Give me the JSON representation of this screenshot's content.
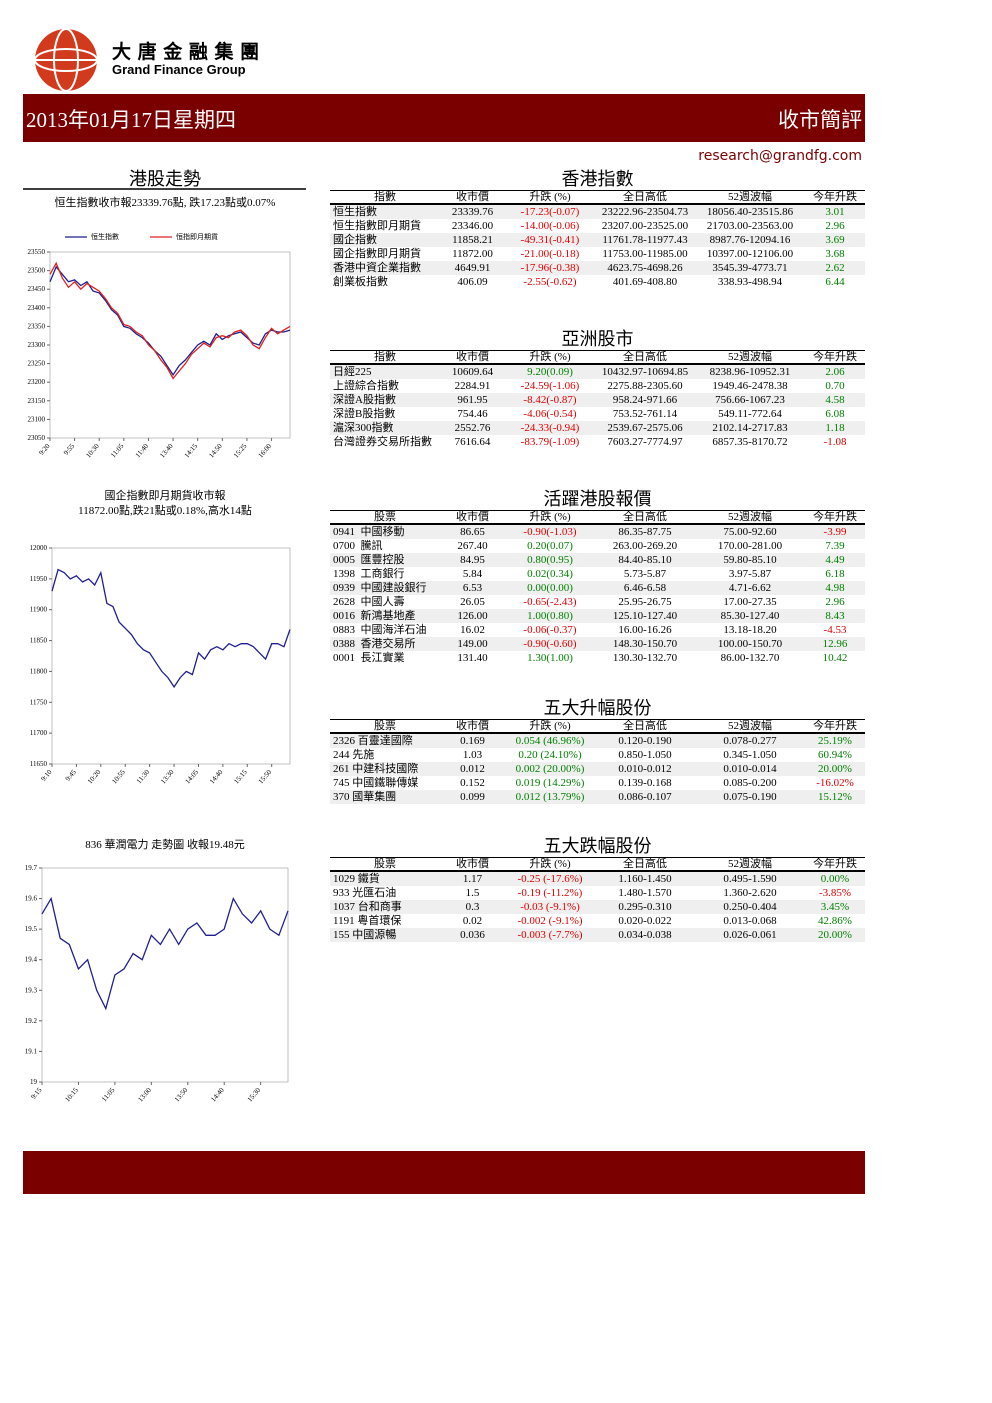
{
  "header": {
    "logo_cn": "大 唐 金 融 集 團",
    "logo_en": "Grand Finance Group",
    "date": "2013年01月17日星期四",
    "section": "收市簡評",
    "email": "research@grandfg.com"
  },
  "left_heading": "港股走勢",
  "chart_data": [
    {
      "type": "line",
      "title": "恒生指數收市報23339.76點, 跌17.23點或0.07%",
      "categories": [
        "9:20",
        null,
        null,
        null,
        "9:55",
        null,
        null,
        null,
        "10:30",
        null,
        null,
        null,
        "11:05",
        null,
        null,
        null,
        "11:40",
        null,
        null,
        null,
        "13:40",
        null,
        null,
        null,
        "14:15",
        null,
        null,
        null,
        "14:50",
        null,
        null,
        null,
        "15:25",
        null,
        null,
        null,
        "16:00",
        null,
        null,
        null
      ],
      "series": [
        {
          "name": "恒生指數",
          "color": "#1f1f8f",
          "values": [
            23470,
            23510,
            23490,
            23470,
            23475,
            23460,
            23470,
            23445,
            23440,
            23420,
            23395,
            23380,
            23350,
            23345,
            23330,
            23320,
            23305,
            23285,
            23270,
            23245,
            23220,
            23245,
            23260,
            23280,
            23300,
            23310,
            23300,
            23330,
            23315,
            23325,
            23330,
            23335,
            23320,
            23305,
            23300,
            23330,
            23340,
            23335,
            23335,
            23340
          ]
        },
        {
          "name": "恒指即月期貨",
          "color": "#e02020",
          "values": [
            23490,
            23520,
            23480,
            23455,
            23470,
            23450,
            23465,
            23455,
            23445,
            23425,
            23400,
            23385,
            23355,
            23350,
            23335,
            23325,
            23300,
            23285,
            23260,
            23240,
            23210,
            23230,
            23250,
            23275,
            23290,
            23305,
            23295,
            23320,
            23325,
            23320,
            23335,
            23340,
            23325,
            23300,
            23290,
            23320,
            23345,
            23330,
            23340,
            23350
          ]
        }
      ],
      "ylim": [
        23050,
        23550
      ],
      "yticks": [
        23050,
        23100,
        23150,
        23200,
        23250,
        23300,
        23350,
        23400,
        23450,
        23500,
        23550
      ]
    },
    {
      "type": "line",
      "title": [
        "國企指數即月期貨收市報",
        "11872.00點,跌21點或0.18%,高水14點"
      ],
      "categories": [
        "9:10",
        null,
        null,
        null,
        "9:45",
        null,
        null,
        null,
        "10:20",
        null,
        null,
        null,
        "10:55",
        null,
        null,
        null,
        "11:30",
        null,
        null,
        null,
        "13:30",
        null,
        null,
        null,
        "14:05",
        null,
        null,
        null,
        "14:40",
        null,
        null,
        null,
        "15:15",
        null,
        null,
        null,
        "15:50",
        null,
        null,
        null
      ],
      "color": "#1f1f8f",
      "values": [
        11930,
        11965,
        11960,
        11950,
        11955,
        11945,
        11950,
        11940,
        11960,
        11910,
        11905,
        11880,
        11870,
        11860,
        11845,
        11835,
        11830,
        11815,
        11800,
        11790,
        11775,
        11790,
        11800,
        11795,
        11830,
        11820,
        11835,
        11840,
        11835,
        11845,
        11840,
        11845,
        11845,
        11840,
        11830,
        11820,
        11845,
        11845,
        11840,
        11868
      ],
      "ylim": [
        11650,
        12000
      ],
      "yticks": [
        11650,
        11700,
        11750,
        11800,
        11850,
        11900,
        11950,
        12000
      ]
    },
    {
      "type": "line",
      "title": "836 華潤電力 走勢圖  收報19.48元",
      "categories": [
        "9:15",
        null,
        null,
        null,
        "10:15",
        null,
        null,
        null,
        "11:05",
        null,
        null,
        null,
        "13:00",
        null,
        null,
        null,
        "13:50",
        null,
        null,
        null,
        "14:40",
        null,
        null,
        null,
        "15:30",
        null,
        null,
        null
      ],
      "color": "#1f1f8f",
      "values": [
        19.55,
        19.6,
        19.47,
        19.45,
        19.37,
        19.4,
        19.3,
        19.24,
        19.35,
        19.37,
        19.42,
        19.4,
        19.48,
        19.45,
        19.5,
        19.45,
        19.5,
        19.52,
        19.48,
        19.48,
        19.5,
        19.6,
        19.55,
        19.52,
        19.56,
        19.5,
        19.48,
        19.56
      ],
      "ylim": [
        19,
        19.7
      ],
      "yticks": [
        19,
        19.1,
        19.2,
        19.3,
        19.4,
        19.5,
        19.6,
        19.7
      ]
    }
  ],
  "tables": [
    {
      "heading": "香港指數",
      "columns": [
        "指數",
        "收市價",
        "升跌 (%)",
        "全日高低",
        "52週波幅",
        "今年升跌"
      ],
      "rows": [
        [
          "恒生指數",
          "23339.76",
          "-17.23(-0.07)",
          "23222.96-23504.73",
          "18056.40-23515.86",
          "3.01"
        ],
        [
          "恒生指數即月期貨",
          "23346.00",
          "-14.00(-0.06)",
          "23207.00-23525.00",
          "21703.00-23563.00",
          "2.96"
        ],
        [
          "國企指數",
          "11858.21",
          "-49.31(-0.41)",
          "11761.78-11977.43",
          "8987.76-12094.16",
          "3.69"
        ],
        [
          "國企指數即月期貨",
          "11872.00",
          "-21.00(-0.18)",
          "11753.00-11985.00",
          "10397.00-12106.00",
          "3.68"
        ],
        [
          "香港中資企業指數",
          "4649.91",
          "-17.96(-0.38)",
          "4623.75-4698.26",
          "3545.39-4773.71",
          "2.62"
        ],
        [
          "創業板指數",
          "406.09",
          "-2.55(-0.62)",
          "401.69-408.80",
          "338.93-498.94",
          "6.44"
        ]
      ]
    },
    {
      "heading": "亞洲股市",
      "columns": [
        "指數",
        "收市價",
        "升跌 (%)",
        "全日高低",
        "52週波幅",
        "今年升跌"
      ],
      "rows": [
        [
          "日經225",
          "10609.64",
          "9.20(0.09)",
          "10432.97-10694.85",
          "8238.96-10952.31",
          "2.06"
        ],
        [
          "上證綜合指數",
          "2284.91",
          "-24.59(-1.06)",
          "2275.88-2305.60",
          "1949.46-2478.38",
          "0.70"
        ],
        [
          "深證A股指數",
          "961.95",
          "-8.42(-0.87)",
          "958.24-971.66",
          "756.66-1067.23",
          "4.58"
        ],
        [
          "深證B股指數",
          "754.46",
          "-4.06(-0.54)",
          "753.52-761.14",
          "549.11-772.64",
          "6.08"
        ],
        [
          "滬深300指數",
          "2552.76",
          "-24.33(-0.94)",
          "2539.67-2575.06",
          "2102.14-2717.83",
          "1.18"
        ],
        [
          "台灣證券交易所指數",
          "7616.64",
          "-83.79(-1.09)",
          "7603.27-7774.97",
          "6857.35-8170.72",
          "-1.08"
        ]
      ]
    },
    {
      "heading": "活躍港股報價",
      "columns": [
        "股票",
        "收市價",
        "升跌 (%)",
        "全日高低",
        "52週波幅",
        "今年升跌"
      ],
      "rows": [
        [
          "0941  中國移動",
          "86.65",
          "-0.90(-1.03)",
          "86.35-87.75",
          "75.00-92.60",
          "-3.99"
        ],
        [
          "0700  騰訊",
          "267.40",
          "0.20(0.07)",
          "263.00-269.20",
          "170.00-281.00",
          "7.39"
        ],
        [
          "0005  匯豐控股",
          "84.95",
          "0.80(0.95)",
          "84.40-85.10",
          "59.80-85.10",
          "4.49"
        ],
        [
          "1398  工商銀行",
          "5.84",
          "0.02(0.34)",
          "5.73-5.87",
          "3.97-5.87",
          "6.18"
        ],
        [
          "0939  中國建設銀行",
          "6.53",
          "0.00(0.00)",
          "6.46-6.58",
          "4.71-6.62",
          "4.98"
        ],
        [
          "2628  中國人壽",
          "26.05",
          "-0.65(-2.43)",
          "25.95-26.75",
          "17.00-27.35",
          "2.96"
        ],
        [
          "0016  新鴻基地產",
          "126.00",
          "1.00(0.80)",
          "125.10-127.40",
          "85.30-127.40",
          "8.43"
        ],
        [
          "0883  中國海洋石油",
          "16.02",
          "-0.06(-0.37)",
          "16.00-16.26",
          "13.18-18.20",
          "-4.53"
        ],
        [
          "0388  香港交易所",
          "149.00",
          "-0.90(-0.60)",
          "148.30-150.70",
          "100.00-150.70",
          "12.96"
        ],
        [
          "0001  長江實業",
          "131.40",
          "1.30(1.00)",
          "130.30-132.70",
          "86.00-132.70",
          "10.42"
        ]
      ]
    },
    {
      "heading": "五大升幅股份",
      "columns": [
        "股票",
        "收市價",
        "升跌 (%)",
        "全日高低",
        "52週波幅",
        "今年升跌"
      ],
      "rows": [
        [
          "2326 百靈達國際",
          "0.169",
          "0.054 (46.96%)",
          "0.120-0.190",
          "0.078-0.277",
          "25.19%"
        ],
        [
          "244 先施",
          "1.03",
          "0.20 (24.10%)",
          "0.850-1.050",
          "0.345-1.050",
          "60.94%"
        ],
        [
          "261 中建科技國際",
          "0.012",
          "0.002 (20.00%)",
          "0.010-0.012",
          "0.010-0.014",
          "20.00%"
        ],
        [
          "745 中國鐵聯傳媒",
          "0.152",
          "0.019 (14.29%)",
          "0.139-0.168",
          "0.085-0.200",
          "-16.02%"
        ],
        [
          "370 國華集團",
          "0.099",
          "0.012 (13.79%)",
          "0.086-0.107",
          "0.075-0.190",
          "15.12%"
        ]
      ]
    },
    {
      "heading": "五大跌幅股份",
      "columns": [
        "股票",
        "收市價",
        "升跌 (%)",
        "全日高低",
        "52週波幅",
        "今年升跌"
      ],
      "rows": [
        [
          "1029 鐵貨",
          "1.17",
          "-0.25 (-17.6%)",
          "1.160-1.450",
          "0.495-1.590",
          "0.00%"
        ],
        [
          "933 光匯石油",
          "1.5",
          "-0.19 (-11.2%)",
          "1.480-1.570",
          "1.360-2.620",
          "-3.85%"
        ],
        [
          "1037 台和商事",
          "0.3",
          "-0.03 (-9.1%)",
          "0.295-0.310",
          "0.250-0.404",
          "3.45%"
        ],
        [
          "1191 粵首環保",
          "0.02",
          "-0.002 (-9.1%)",
          "0.020-0.022",
          "0.013-0.068",
          "42.86%"
        ],
        [
          "155 中國源暢",
          "0.036",
          "-0.003 (-7.7%)",
          "0.034-0.038",
          "0.026-0.061",
          "20.00%"
        ]
      ]
    }
  ]
}
